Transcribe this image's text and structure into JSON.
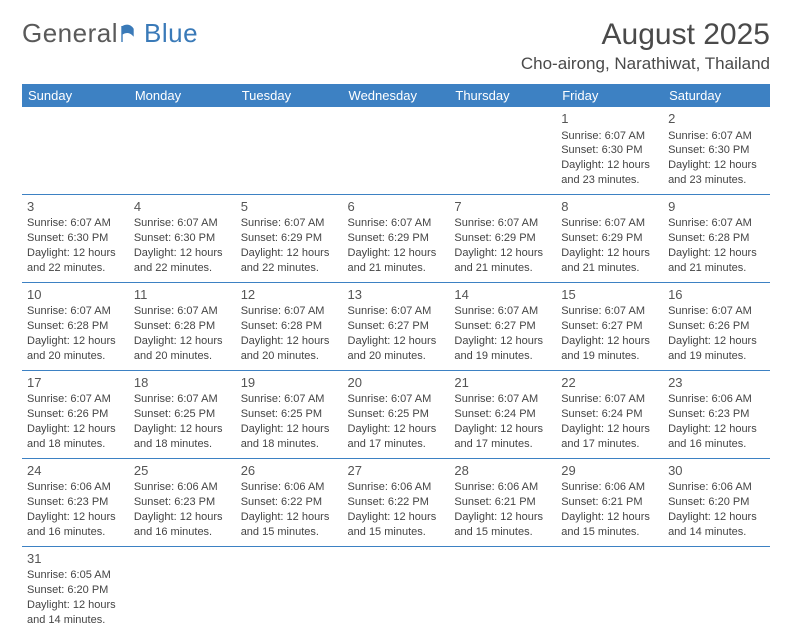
{
  "logo": {
    "text_gray": "General",
    "text_blue": "Blue"
  },
  "title": "August 2025",
  "location": "Cho-airong, Narathiwat, Thailand",
  "header_bg": "#3d81c3",
  "header_fg": "#ffffff",
  "divider_color": "#3d81c3",
  "text_color": "#444444",
  "weekdays": [
    "Sunday",
    "Monday",
    "Tuesday",
    "Wednesday",
    "Thursday",
    "Friday",
    "Saturday"
  ],
  "weeks": [
    [
      null,
      null,
      null,
      null,
      null,
      {
        "n": "1",
        "sr": "Sunrise: 6:07 AM",
        "ss": "Sunset: 6:30 PM",
        "d1": "Daylight: 12 hours",
        "d2": "and 23 minutes."
      },
      {
        "n": "2",
        "sr": "Sunrise: 6:07 AM",
        "ss": "Sunset: 6:30 PM",
        "d1": "Daylight: 12 hours",
        "d2": "and 23 minutes."
      }
    ],
    [
      {
        "n": "3",
        "sr": "Sunrise: 6:07 AM",
        "ss": "Sunset: 6:30 PM",
        "d1": "Daylight: 12 hours",
        "d2": "and 22 minutes."
      },
      {
        "n": "4",
        "sr": "Sunrise: 6:07 AM",
        "ss": "Sunset: 6:30 PM",
        "d1": "Daylight: 12 hours",
        "d2": "and 22 minutes."
      },
      {
        "n": "5",
        "sr": "Sunrise: 6:07 AM",
        "ss": "Sunset: 6:29 PM",
        "d1": "Daylight: 12 hours",
        "d2": "and 22 minutes."
      },
      {
        "n": "6",
        "sr": "Sunrise: 6:07 AM",
        "ss": "Sunset: 6:29 PM",
        "d1": "Daylight: 12 hours",
        "d2": "and 21 minutes."
      },
      {
        "n": "7",
        "sr": "Sunrise: 6:07 AM",
        "ss": "Sunset: 6:29 PM",
        "d1": "Daylight: 12 hours",
        "d2": "and 21 minutes."
      },
      {
        "n": "8",
        "sr": "Sunrise: 6:07 AM",
        "ss": "Sunset: 6:29 PM",
        "d1": "Daylight: 12 hours",
        "d2": "and 21 minutes."
      },
      {
        "n": "9",
        "sr": "Sunrise: 6:07 AM",
        "ss": "Sunset: 6:28 PM",
        "d1": "Daylight: 12 hours",
        "d2": "and 21 minutes."
      }
    ],
    [
      {
        "n": "10",
        "sr": "Sunrise: 6:07 AM",
        "ss": "Sunset: 6:28 PM",
        "d1": "Daylight: 12 hours",
        "d2": "and 20 minutes."
      },
      {
        "n": "11",
        "sr": "Sunrise: 6:07 AM",
        "ss": "Sunset: 6:28 PM",
        "d1": "Daylight: 12 hours",
        "d2": "and 20 minutes."
      },
      {
        "n": "12",
        "sr": "Sunrise: 6:07 AM",
        "ss": "Sunset: 6:28 PM",
        "d1": "Daylight: 12 hours",
        "d2": "and 20 minutes."
      },
      {
        "n": "13",
        "sr": "Sunrise: 6:07 AM",
        "ss": "Sunset: 6:27 PM",
        "d1": "Daylight: 12 hours",
        "d2": "and 20 minutes."
      },
      {
        "n": "14",
        "sr": "Sunrise: 6:07 AM",
        "ss": "Sunset: 6:27 PM",
        "d1": "Daylight: 12 hours",
        "d2": "and 19 minutes."
      },
      {
        "n": "15",
        "sr": "Sunrise: 6:07 AM",
        "ss": "Sunset: 6:27 PM",
        "d1": "Daylight: 12 hours",
        "d2": "and 19 minutes."
      },
      {
        "n": "16",
        "sr": "Sunrise: 6:07 AM",
        "ss": "Sunset: 6:26 PM",
        "d1": "Daylight: 12 hours",
        "d2": "and 19 minutes."
      }
    ],
    [
      {
        "n": "17",
        "sr": "Sunrise: 6:07 AM",
        "ss": "Sunset: 6:26 PM",
        "d1": "Daylight: 12 hours",
        "d2": "and 18 minutes."
      },
      {
        "n": "18",
        "sr": "Sunrise: 6:07 AM",
        "ss": "Sunset: 6:25 PM",
        "d1": "Daylight: 12 hours",
        "d2": "and 18 minutes."
      },
      {
        "n": "19",
        "sr": "Sunrise: 6:07 AM",
        "ss": "Sunset: 6:25 PM",
        "d1": "Daylight: 12 hours",
        "d2": "and 18 minutes."
      },
      {
        "n": "20",
        "sr": "Sunrise: 6:07 AM",
        "ss": "Sunset: 6:25 PM",
        "d1": "Daylight: 12 hours",
        "d2": "and 17 minutes."
      },
      {
        "n": "21",
        "sr": "Sunrise: 6:07 AM",
        "ss": "Sunset: 6:24 PM",
        "d1": "Daylight: 12 hours",
        "d2": "and 17 minutes."
      },
      {
        "n": "22",
        "sr": "Sunrise: 6:07 AM",
        "ss": "Sunset: 6:24 PM",
        "d1": "Daylight: 12 hours",
        "d2": "and 17 minutes."
      },
      {
        "n": "23",
        "sr": "Sunrise: 6:06 AM",
        "ss": "Sunset: 6:23 PM",
        "d1": "Daylight: 12 hours",
        "d2": "and 16 minutes."
      }
    ],
    [
      {
        "n": "24",
        "sr": "Sunrise: 6:06 AM",
        "ss": "Sunset: 6:23 PM",
        "d1": "Daylight: 12 hours",
        "d2": "and 16 minutes."
      },
      {
        "n": "25",
        "sr": "Sunrise: 6:06 AM",
        "ss": "Sunset: 6:23 PM",
        "d1": "Daylight: 12 hours",
        "d2": "and 16 minutes."
      },
      {
        "n": "26",
        "sr": "Sunrise: 6:06 AM",
        "ss": "Sunset: 6:22 PM",
        "d1": "Daylight: 12 hours",
        "d2": "and 15 minutes."
      },
      {
        "n": "27",
        "sr": "Sunrise: 6:06 AM",
        "ss": "Sunset: 6:22 PM",
        "d1": "Daylight: 12 hours",
        "d2": "and 15 minutes."
      },
      {
        "n": "28",
        "sr": "Sunrise: 6:06 AM",
        "ss": "Sunset: 6:21 PM",
        "d1": "Daylight: 12 hours",
        "d2": "and 15 minutes."
      },
      {
        "n": "29",
        "sr": "Sunrise: 6:06 AM",
        "ss": "Sunset: 6:21 PM",
        "d1": "Daylight: 12 hours",
        "d2": "and 15 minutes."
      },
      {
        "n": "30",
        "sr": "Sunrise: 6:06 AM",
        "ss": "Sunset: 6:20 PM",
        "d1": "Daylight: 12 hours",
        "d2": "and 14 minutes."
      }
    ],
    [
      {
        "n": "31",
        "sr": "Sunrise: 6:05 AM",
        "ss": "Sunset: 6:20 PM",
        "d1": "Daylight: 12 hours",
        "d2": "and 14 minutes."
      },
      null,
      null,
      null,
      null,
      null,
      null
    ]
  ]
}
